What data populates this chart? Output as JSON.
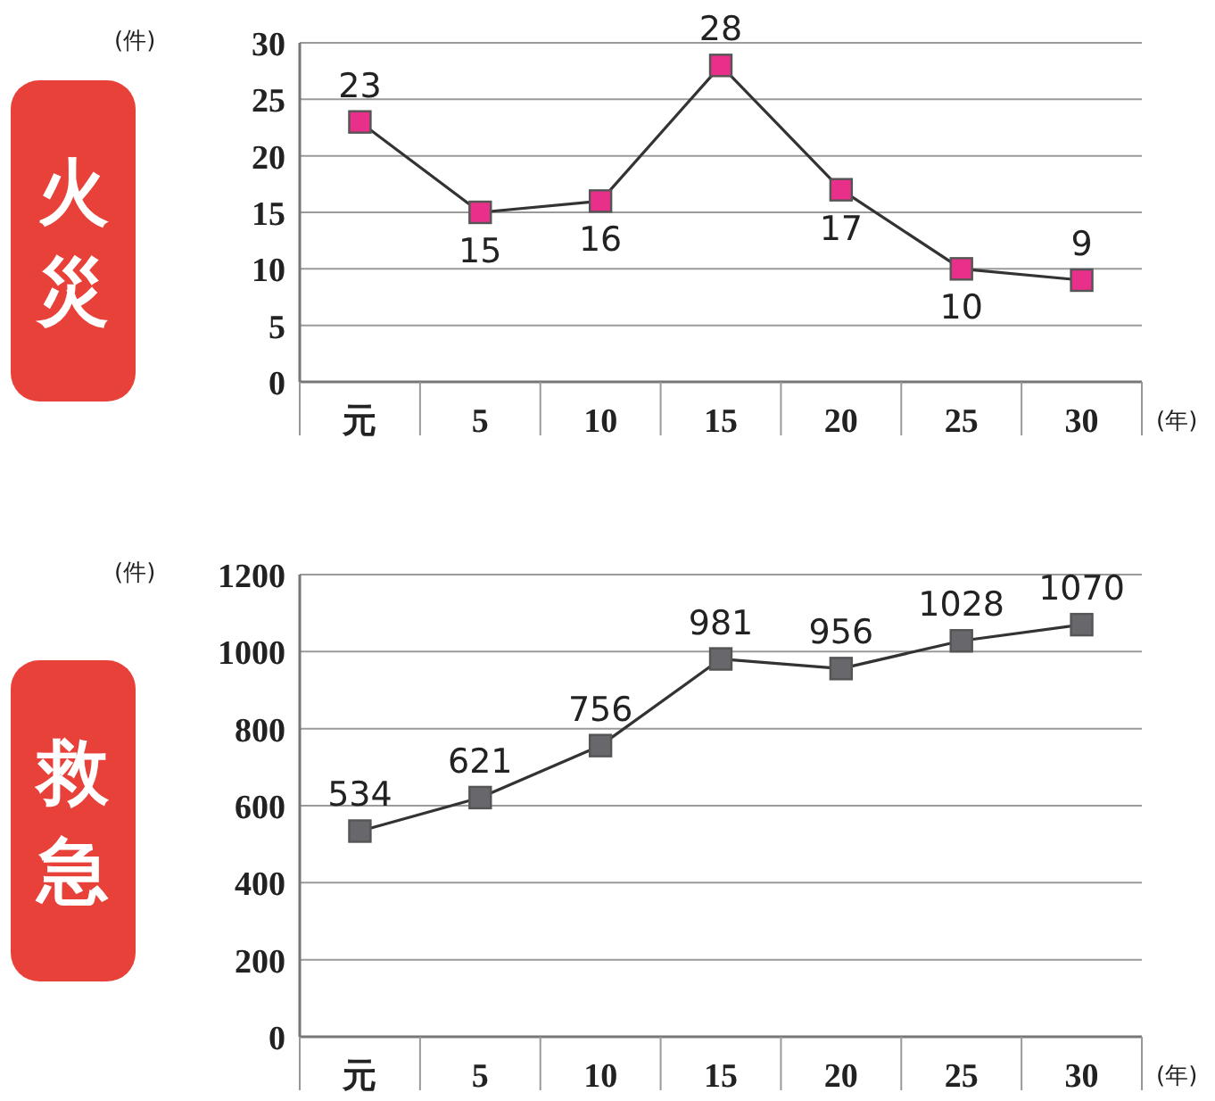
{
  "chart_data": [
    {
      "type": "line",
      "title": "火災",
      "ylabel": "(件)",
      "xlabel": "(年)",
      "categories": [
        "元",
        "5",
        "10",
        "15",
        "20",
        "25",
        "30"
      ],
      "series": [
        {
          "color": "#e8308a",
          "values": [
            23,
            15,
            16,
            28,
            17,
            10,
            9
          ]
        }
      ],
      "ylim": [
        0,
        30
      ],
      "yticks": [
        0,
        5,
        10,
        15,
        20,
        25,
        30
      ],
      "grid": "y",
      "marker": "square",
      "data_labels": true
    },
    {
      "type": "line",
      "title": "救急",
      "ylabel": "(件)",
      "xlabel": "(年)",
      "categories": [
        "元",
        "5",
        "10",
        "15",
        "20",
        "25",
        "30"
      ],
      "series": [
        {
          "color": "#68686c",
          "values": [
            534,
            621,
            756,
            981,
            956,
            1028,
            1070
          ]
        }
      ],
      "ylim": [
        0,
        1200
      ],
      "yticks": [
        0,
        200,
        400,
        600,
        800,
        1000,
        1200
      ],
      "grid": "y",
      "marker": "square",
      "data_labels": true
    }
  ]
}
